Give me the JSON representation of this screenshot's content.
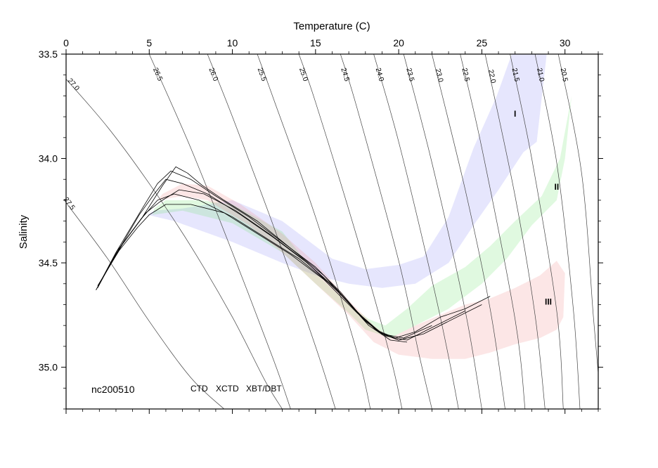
{
  "chart_data": {
    "type": "scatter",
    "title": "",
    "xlabel": "Temperature (C)",
    "ylabel": "Salinity",
    "xlim": [
      0,
      32
    ],
    "ylim": [
      35.2,
      33.5
    ],
    "y_axis_inverted": true,
    "x_ticks": [
      "0",
      "5",
      "10",
      "15",
      "20",
      "25",
      "30"
    ],
    "y_ticks": [
      "33.5",
      "34.0",
      "34.5",
      "35.0"
    ],
    "x_tick_values": [
      0,
      5,
      10,
      15,
      20,
      25,
      30
    ],
    "y_tick_values": [
      33.5,
      34.0,
      34.5,
      35.0
    ],
    "cruise_label": "nc200510",
    "legend": [
      {
        "label": "CTD",
        "color": "#000000"
      },
      {
        "label": "XCTD",
        "color": "#00d000"
      },
      {
        "label": "XBT/DBT",
        "color": "#e00000"
      }
    ],
    "density_contours": [
      {
        "label": "27.5",
        "points": [
          [
            -0.3,
            34.18
          ],
          [
            2.5,
            34.48
          ],
          [
            5,
            34.78
          ],
          [
            7.5,
            35.05
          ],
          [
            9.5,
            35.2
          ]
        ]
      },
      {
        "label": "27.0",
        "points": [
          [
            0,
            33.62
          ],
          [
            2.5,
            33.85
          ],
          [
            5,
            34.12
          ],
          [
            7.5,
            34.42
          ],
          [
            10,
            34.76
          ],
          [
            12,
            35.07
          ],
          [
            13,
            35.2
          ]
        ]
      },
      {
        "label": "26.5",
        "points": [
          [
            5,
            33.5
          ],
          [
            7.5,
            33.95
          ],
          [
            10,
            34.45
          ],
          [
            12.5,
            34.97
          ],
          [
            13.5,
            35.2
          ]
        ]
      },
      {
        "label": "26.0",
        "points": [
          [
            8.5,
            33.5
          ],
          [
            10,
            33.8
          ],
          [
            12.5,
            34.33
          ],
          [
            15,
            34.9
          ],
          [
            16.2,
            35.2
          ]
        ]
      },
      {
        "label": "25.5",
        "points": [
          [
            11.5,
            33.5
          ],
          [
            12.5,
            33.72
          ],
          [
            15,
            34.28
          ],
          [
            17.5,
            34.93
          ],
          [
            18.3,
            35.2
          ]
        ]
      },
      {
        "label": "25.0",
        "points": [
          [
            14,
            33.5
          ],
          [
            15,
            33.73
          ],
          [
            17.5,
            34.38
          ],
          [
            19.5,
            34.95
          ],
          [
            20.2,
            35.2
          ]
        ]
      },
      {
        "label": "24.5",
        "points": [
          [
            16.5,
            33.5
          ],
          [
            17.5,
            33.76
          ],
          [
            20,
            34.49
          ],
          [
            21.2,
            34.93
          ],
          [
            22,
            35.2
          ]
        ]
      },
      {
        "label": "24.0",
        "points": [
          [
            18.5,
            33.5
          ],
          [
            20,
            33.92
          ],
          [
            22,
            34.58
          ],
          [
            23,
            34.95
          ],
          [
            23.6,
            35.2
          ]
        ]
      },
      {
        "label": "23.5",
        "points": [
          [
            20.3,
            33.5
          ],
          [
            22,
            34.02
          ],
          [
            24,
            34.73
          ],
          [
            25,
            35.2
          ]
        ]
      },
      {
        "label": "23.0",
        "points": [
          [
            22,
            33.5
          ],
          [
            24,
            34.15
          ],
          [
            25.5,
            34.72
          ],
          [
            26.4,
            35.2
          ]
        ]
      },
      {
        "label": "22.5",
        "points": [
          [
            23.7,
            33.5
          ],
          [
            25,
            33.95
          ],
          [
            27,
            34.77
          ],
          [
            27.6,
            35.2
          ]
        ]
      },
      {
        "label": "22.0",
        "points": [
          [
            25.2,
            33.5
          ],
          [
            27,
            34.18
          ],
          [
            28.2,
            34.75
          ],
          [
            28.8,
            35.2
          ]
        ]
      },
      {
        "label": "21.5",
        "points": [
          [
            26.7,
            33.5
          ],
          [
            28,
            34.0
          ],
          [
            29.5,
            34.73
          ],
          [
            29.9,
            35.2
          ]
        ]
      },
      {
        "label": "21.0",
        "points": [
          [
            28.2,
            33.5
          ],
          [
            29.5,
            34.02
          ],
          [
            30.5,
            34.72
          ],
          [
            30.9,
            35.2
          ]
        ]
      },
      {
        "label": "20.5",
        "points": [
          [
            29.6,
            33.5
          ],
          [
            31,
            34.07
          ],
          [
            31.7,
            34.75
          ],
          [
            32,
            35.03
          ]
        ]
      }
    ],
    "regions": [
      {
        "label": "I",
        "color": "#8c8cf5",
        "opacity": 0.22,
        "label_at": [
          27,
          33.8
        ],
        "polygon": [
          [
            4.9,
            34.27
          ],
          [
            6.5,
            34.3
          ],
          [
            10,
            34.4
          ],
          [
            13,
            34.5
          ],
          [
            15,
            34.56
          ],
          [
            17,
            34.6
          ],
          [
            19,
            34.62
          ],
          [
            21,
            34.6
          ],
          [
            23,
            34.5
          ],
          [
            24.5,
            34.32
          ],
          [
            26,
            34.15
          ],
          [
            27.5,
            33.97
          ],
          [
            28.3,
            33.92
          ],
          [
            28.9,
            33.5
          ],
          [
            26.8,
            33.5
          ],
          [
            25.9,
            33.7
          ],
          [
            24.5,
            33.95
          ],
          [
            23,
            34.28
          ],
          [
            21.5,
            34.47
          ],
          [
            20,
            34.51
          ],
          [
            18,
            34.53
          ],
          [
            16,
            34.48
          ],
          [
            13,
            34.3
          ],
          [
            10,
            34.2
          ],
          [
            7,
            34.24
          ],
          [
            5.3,
            34.25
          ]
        ]
      },
      {
        "label": "II",
        "color": "#62e062",
        "opacity": 0.2,
        "label_at": [
          29.5,
          34.15
        ],
        "polygon": [
          [
            5.2,
            34.27
          ],
          [
            7,
            34.25
          ],
          [
            10,
            34.31
          ],
          [
            13,
            34.45
          ],
          [
            15,
            34.6
          ],
          [
            17,
            34.74
          ],
          [
            18,
            34.82
          ],
          [
            19.5,
            34.86
          ],
          [
            21,
            34.8
          ],
          [
            23,
            34.72
          ],
          [
            25,
            34.6
          ],
          [
            26.5,
            34.48
          ],
          [
            28,
            34.32
          ],
          [
            29.5,
            34.2
          ],
          [
            30,
            34.0
          ],
          [
            30.4,
            33.7
          ],
          [
            29.7,
            34.0
          ],
          [
            28.6,
            34.18
          ],
          [
            27,
            34.3
          ],
          [
            25.5,
            34.42
          ],
          [
            24,
            34.52
          ],
          [
            22,
            34.61
          ],
          [
            20.5,
            34.72
          ],
          [
            19.2,
            34.8
          ],
          [
            18.2,
            34.77
          ],
          [
            17,
            34.7
          ],
          [
            15,
            34.55
          ],
          [
            13,
            34.35
          ],
          [
            10,
            34.22
          ],
          [
            8,
            34.2
          ],
          [
            6,
            34.2
          ],
          [
            5.3,
            34.24
          ]
        ]
      },
      {
        "label": "III",
        "color": "#f28c8c",
        "opacity": 0.22,
        "label_at": [
          29,
          34.7
        ],
        "polygon": [
          [
            5.5,
            34.2
          ],
          [
            7,
            34.18
          ],
          [
            8.5,
            34.2
          ],
          [
            11,
            34.32
          ],
          [
            13,
            34.45
          ],
          [
            15,
            34.6
          ],
          [
            17,
            34.75
          ],
          [
            18.5,
            34.88
          ],
          [
            20,
            34.94
          ],
          [
            22,
            34.96
          ],
          [
            24,
            34.96
          ],
          [
            25.5,
            34.93
          ],
          [
            27,
            34.89
          ],
          [
            28.5,
            34.86
          ],
          [
            29.5,
            34.82
          ],
          [
            29.9,
            34.76
          ],
          [
            30,
            34.55
          ],
          [
            29.5,
            34.49
          ],
          [
            28.5,
            34.56
          ],
          [
            27,
            34.62
          ],
          [
            25.5,
            34.67
          ],
          [
            24,
            34.7
          ],
          [
            22.5,
            34.75
          ],
          [
            21,
            34.8
          ],
          [
            19.5,
            34.86
          ],
          [
            18.5,
            34.8
          ],
          [
            17,
            34.68
          ],
          [
            15,
            34.5
          ],
          [
            13,
            34.36
          ],
          [
            10.5,
            34.22
          ],
          [
            8.5,
            34.13
          ],
          [
            7,
            34.12
          ],
          [
            5.8,
            34.17
          ]
        ]
      }
    ],
    "ctd_profiles": [
      {
        "points": [
          [
            1.8,
            34.63
          ],
          [
            3,
            34.45
          ],
          [
            4.5,
            34.25
          ],
          [
            5.5,
            34.12
          ],
          [
            6.3,
            34.06
          ],
          [
            7.5,
            34.1
          ],
          [
            9,
            34.18
          ],
          [
            11,
            34.28
          ],
          [
            13,
            34.4
          ],
          [
            15,
            34.52
          ],
          [
            16.5,
            34.64
          ],
          [
            18,
            34.78
          ],
          [
            19,
            34.84
          ],
          [
            20,
            34.87
          ],
          [
            21,
            34.85
          ]
        ]
      },
      {
        "points": [
          [
            1.8,
            34.63
          ],
          [
            3,
            34.46
          ],
          [
            4.4,
            34.27
          ],
          [
            5.3,
            34.17
          ],
          [
            6,
            34.1
          ],
          [
            7,
            34.12
          ],
          [
            8.5,
            34.17
          ],
          [
            10.5,
            34.27
          ],
          [
            12.5,
            34.38
          ],
          [
            14.5,
            34.5
          ],
          [
            16.5,
            34.65
          ],
          [
            18.2,
            34.8
          ],
          [
            19.5,
            34.87
          ],
          [
            20.5,
            34.88
          ]
        ]
      },
      {
        "points": [
          [
            1.9,
            34.62
          ],
          [
            3.1,
            34.44
          ],
          [
            4.5,
            34.29
          ],
          [
            5.5,
            34.2
          ],
          [
            6.5,
            34.17
          ],
          [
            8,
            34.2
          ],
          [
            10,
            34.28
          ],
          [
            12,
            34.38
          ],
          [
            14,
            34.48
          ],
          [
            16,
            34.61
          ],
          [
            17.7,
            34.75
          ],
          [
            19,
            34.84
          ],
          [
            20.3,
            34.86
          ],
          [
            22,
            34.8
          ]
        ]
      },
      {
        "points": [
          [
            1.9,
            34.61
          ],
          [
            3.2,
            34.44
          ],
          [
            4.3,
            34.33
          ],
          [
            5,
            34.27
          ],
          [
            6,
            34.22
          ],
          [
            7.5,
            34.22
          ],
          [
            9.5,
            34.26
          ],
          [
            11.5,
            34.36
          ],
          [
            13.5,
            34.46
          ],
          [
            15.5,
            34.58
          ],
          [
            17.5,
            34.74
          ],
          [
            18.8,
            34.83
          ],
          [
            20,
            34.87
          ],
          [
            21.5,
            34.84
          ],
          [
            23,
            34.78
          ],
          [
            25,
            34.7
          ]
        ]
      },
      {
        "points": [
          [
            2,
            34.6
          ],
          [
            3.3,
            34.42
          ],
          [
            4.6,
            34.28
          ],
          [
            5.8,
            34.13
          ],
          [
            6.6,
            34.04
          ],
          [
            7.3,
            34.07
          ],
          [
            8.2,
            34.13
          ],
          [
            9.5,
            34.2
          ],
          [
            11.5,
            34.3
          ],
          [
            13.5,
            34.43
          ],
          [
            15.5,
            34.56
          ],
          [
            17.2,
            34.71
          ],
          [
            18.6,
            34.82
          ],
          [
            19.8,
            34.86
          ],
          [
            21,
            34.83
          ],
          [
            22.5,
            34.76
          ],
          [
            24,
            34.72
          ],
          [
            25.5,
            34.66
          ]
        ]
      },
      {
        "points": [
          [
            2,
            34.6
          ],
          [
            3.4,
            34.41
          ],
          [
            4.8,
            34.26
          ],
          [
            5.6,
            34.21
          ],
          [
            6.8,
            34.15
          ],
          [
            8.3,
            34.17
          ],
          [
            10.2,
            34.25
          ],
          [
            12.2,
            34.36
          ],
          [
            14.2,
            34.48
          ],
          [
            16.2,
            34.62
          ],
          [
            17.9,
            34.77
          ],
          [
            19.2,
            34.85
          ],
          [
            20.5,
            34.87
          ],
          [
            22,
            34.81
          ],
          [
            24,
            34.73
          ]
        ]
      }
    ]
  }
}
